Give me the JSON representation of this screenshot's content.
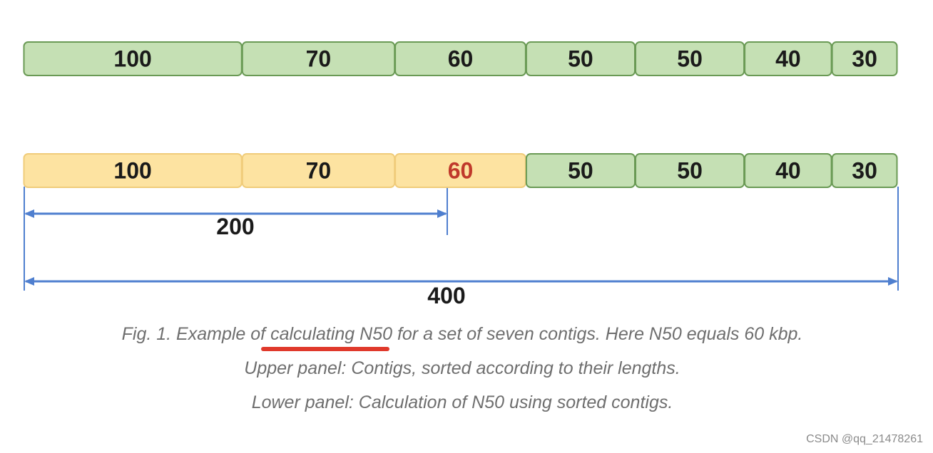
{
  "upper_panel": {
    "segments": [
      {
        "label": "100",
        "value": 100
      },
      {
        "label": "70",
        "value": 70
      },
      {
        "label": "60",
        "value": 60
      },
      {
        "label": "50",
        "value": 50
      },
      {
        "label": "50",
        "value": 50
      },
      {
        "label": "40",
        "value": 40
      },
      {
        "label": "30",
        "value": 30
      }
    ]
  },
  "lower_panel": {
    "segments": [
      {
        "label": "100",
        "value": 100,
        "state": "counted"
      },
      {
        "label": "70",
        "value": 70,
        "state": "counted"
      },
      {
        "label": "60",
        "value": 60,
        "state": "n50"
      },
      {
        "label": "50",
        "value": 50,
        "state": "remaining"
      },
      {
        "label": "50",
        "value": 50,
        "state": "remaining"
      },
      {
        "label": "40",
        "value": 40,
        "state": "remaining"
      },
      {
        "label": "30",
        "value": 30,
        "state": "remaining"
      }
    ],
    "half_total_label": "200",
    "total_label": "400"
  },
  "caption": {
    "line1_prefix": "Fig. 1. Example of ",
    "line1_highlight": "calculating N50",
    "line1_suffix": " for a set of seven contigs. Here N50 equals 60 kbp.",
    "line2": "Upper panel: Contigs, sorted according to their lengths.",
    "line3": "Lower panel: Calculation of N50 using sorted contigs."
  },
  "watermark": "CSDN @qq_21478261",
  "colors": {
    "green_fill": "#c5e0b4",
    "green_stroke": "#6a9a55",
    "yellow_fill": "#fde3a1",
    "yellow_stroke": "#f0cc7a",
    "n50_text": "#c0392b",
    "arrow": "#4f7fcf",
    "highlight_underline": "#e0392b"
  }
}
